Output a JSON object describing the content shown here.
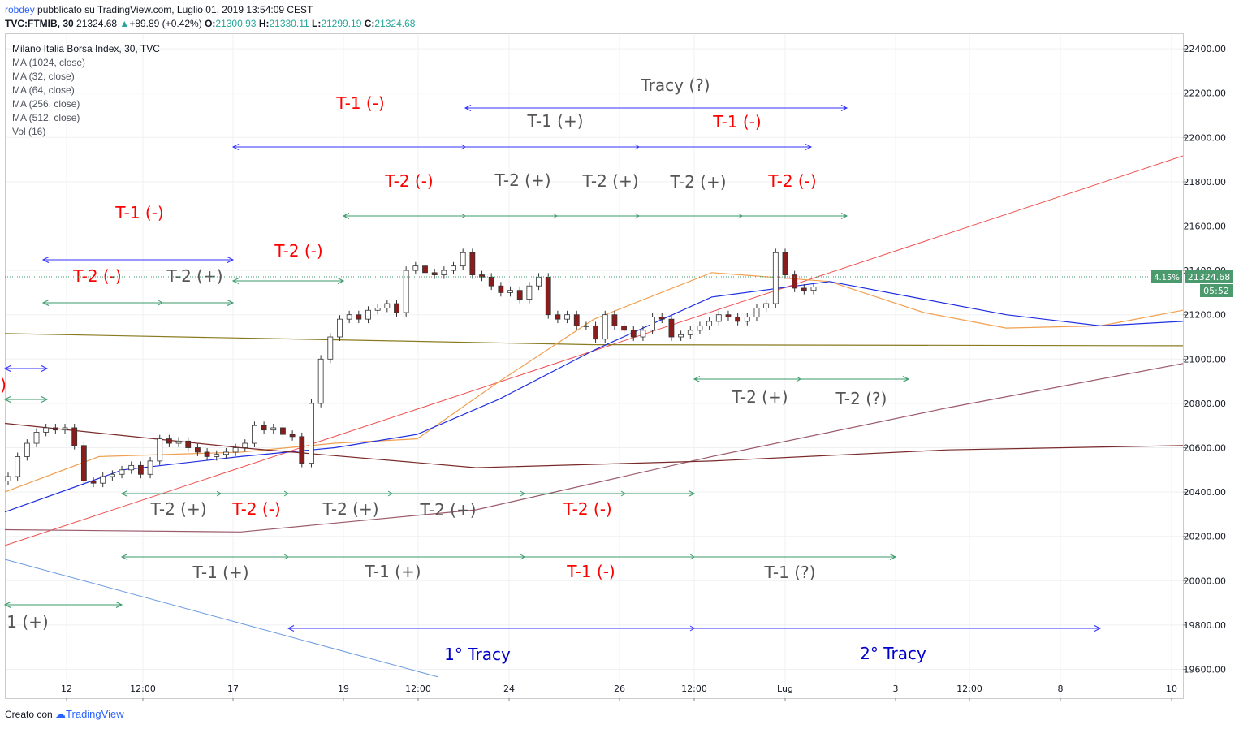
{
  "header": {
    "author": "robdey",
    "published": "pubblicato su TradingView.com, Luglio 01, 2019 13:54:09 CEST",
    "symbol": "TVC:FTMIB, 30",
    "last": "21324.68",
    "change": "+89.89 (+0.42%)",
    "o_label": "O:",
    "open": "21300.93",
    "h_label": "H:",
    "high": "21330.11",
    "l_label": "L:",
    "low": "21299.19",
    "c_label": "C:",
    "close": "21324.68"
  },
  "legend": {
    "title": "Milano Italia Borsa Index, 30, TVC",
    "items": [
      "MA (1024, close)",
      "MA (32, close)",
      "MA (64, close)",
      "MA (256, close)",
      "MA (512, close)",
      "Vol (16)"
    ]
  },
  "price_badges": {
    "percent": "4.15%",
    "price": "21324.68",
    "countdown": "05:52"
  },
  "footer": {
    "created": "Creato con",
    "brand": "TradingView"
  },
  "colors": {
    "red": "#ff0000",
    "gray": "#555555",
    "blue_annot": "#0000cc",
    "arrow_blue": "#3030ff",
    "arrow_green": "#3a9a6a",
    "ma32": "#f0a050",
    "ma64": "#2030e0",
    "ma256": "#9a5a6a",
    "ma512": "#7a2a2a",
    "ma1024": "#8a7a20",
    "trend_red": "#f05050",
    "trend_blue": "#6a9ae0",
    "bull": "#ffffff",
    "bear": "#8a1c1c"
  },
  "chart_data": {
    "type": "candlestick",
    "symbol": "TVC:FTMIB",
    "timeframe": "30",
    "y_axis": {
      "ticks": [
        "22400.00",
        "22200.00",
        "22000.00",
        "21800.00",
        "21600.00",
        "21400.00",
        "21200.00",
        "21000.00",
        "20800.00",
        "20600.00",
        "20400.00",
        "20200.00",
        "20000.00",
        "19800.00",
        "19600.00"
      ],
      "range": [
        19470,
        22470
      ]
    },
    "x_axis": {
      "ticks": [
        "12",
        "12:00",
        "17",
        "19",
        "12:00",
        "24",
        "26",
        "12:00",
        "Lug",
        "3",
        "12:00",
        "8",
        "10"
      ]
    },
    "last_price": 21324.68,
    "candles_close_approx": [
      20470,
      20560,
      20620,
      20670,
      20690,
      20680,
      20690,
      20610,
      20450,
      20440,
      20470,
      20480,
      20500,
      20520,
      20480,
      20540,
      20640,
      20620,
      20630,
      20600,
      20580,
      20560,
      20570,
      20580,
      20600,
      20620,
      20700,
      20680,
      20690,
      20660,
      20650,
      20530,
      20800,
      21000,
      21100,
      21180,
      21200,
      21180,
      21220,
      21230,
      21250,
      21210,
      21400,
      21420,
      21390,
      21380,
      21400,
      21420,
      21480,
      21380,
      21370,
      21330,
      21300,
      21310,
      21270,
      21330,
      21370,
      21200,
      21180,
      21200,
      21150,
      21150,
      21090,
      21200,
      21150,
      21130,
      21100,
      21130,
      21190,
      21180,
      21100,
      21110,
      21130,
      21150,
      21170,
      21200,
      21190,
      21170,
      21190,
      21230,
      21250,
      21480,
      21380,
      21320,
      21310,
      21325
    ],
    "moving_averages": [
      {
        "name": "MA (1024, close)",
        "points": [
          [
            0,
            21115
          ],
          [
            500,
            21065
          ],
          [
            1000,
            21060
          ]
        ]
      },
      {
        "name": "MA (32, close)",
        "points": [
          [
            0,
            20400
          ],
          [
            80,
            20560
          ],
          [
            200,
            20580
          ],
          [
            280,
            20620
          ],
          [
            350,
            20640
          ],
          [
            420,
            20900
          ],
          [
            500,
            21180
          ],
          [
            600,
            21390
          ],
          [
            700,
            21350
          ],
          [
            780,
            21210
          ],
          [
            850,
            21140
          ],
          [
            930,
            21150
          ],
          [
            1000,
            21220
          ]
        ]
      },
      {
        "name": "MA (64, close)",
        "points": [
          [
            0,
            20310
          ],
          [
            100,
            20500
          ],
          [
            200,
            20560
          ],
          [
            280,
            20600
          ],
          [
            350,
            20660
          ],
          [
            420,
            20820
          ],
          [
            500,
            21040
          ],
          [
            600,
            21280
          ],
          [
            700,
            21350
          ],
          [
            780,
            21270
          ],
          [
            850,
            21200
          ],
          [
            930,
            21150
          ],
          [
            1000,
            21170
          ]
        ]
      },
      {
        "name": "MA (256, close)",
        "points": [
          [
            0,
            20230
          ],
          [
            200,
            20220
          ],
          [
            400,
            20320
          ],
          [
            600,
            20560
          ],
          [
            800,
            20780
          ],
          [
            1000,
            20980
          ]
        ]
      },
      {
        "name": "MA (512, close)",
        "points": [
          [
            0,
            20710
          ],
          [
            200,
            20600
          ],
          [
            400,
            20510
          ],
          [
            600,
            20540
          ],
          [
            800,
            20590
          ],
          [
            1000,
            20610
          ]
        ]
      }
    ],
    "annotations": [
      {
        "text": "T-1 (-)",
        "color": "red"
      },
      {
        "text": "Tracy (?)",
        "color": "gray"
      },
      {
        "text": "T-1 (+)",
        "color": "gray"
      },
      {
        "text": "T-1 (-)",
        "color": "red"
      },
      {
        "text": "T-2 (-)",
        "color": "red"
      },
      {
        "text": "T-2 (+)",
        "color": "gray"
      },
      {
        "text": "T-2 (+)",
        "color": "gray"
      },
      {
        "text": "T-2 (+)",
        "color": "gray"
      },
      {
        "text": "T-2 (-)",
        "color": "red"
      },
      {
        "text": "T-1 (-)",
        "color": "red"
      },
      {
        "text": "T-2 (-)",
        "color": "red"
      },
      {
        "text": "T-2 (+)",
        "color": "gray"
      },
      {
        "text": "T-2 (-)",
        "color": "red"
      },
      {
        "text": ")",
        "color": "red"
      },
      {
        "text": "T-2 (+)",
        "color": "gray"
      },
      {
        "text": "T-2 (?)",
        "color": "gray"
      },
      {
        "text": "T-2 (+)",
        "color": "gray"
      },
      {
        "text": "T-2 (-)",
        "color": "red"
      },
      {
        "text": "T-2 (+)",
        "color": "gray"
      },
      {
        "text": "T-2 (+)",
        "color": "gray"
      },
      {
        "text": "T-2 (-)",
        "color": "red"
      },
      {
        "text": "T-1 (+)",
        "color": "gray"
      },
      {
        "text": "T-1 (+)",
        "color": "gray"
      },
      {
        "text": "T-1 (-)",
        "color": "red"
      },
      {
        "text": "T-1 (?)",
        "color": "gray"
      },
      {
        "text": "1 (+)",
        "color": "gray"
      },
      {
        "text": "1° Tracy",
        "color": "blue"
      },
      {
        "text": "2° Tracy",
        "color": "blue"
      }
    ]
  }
}
